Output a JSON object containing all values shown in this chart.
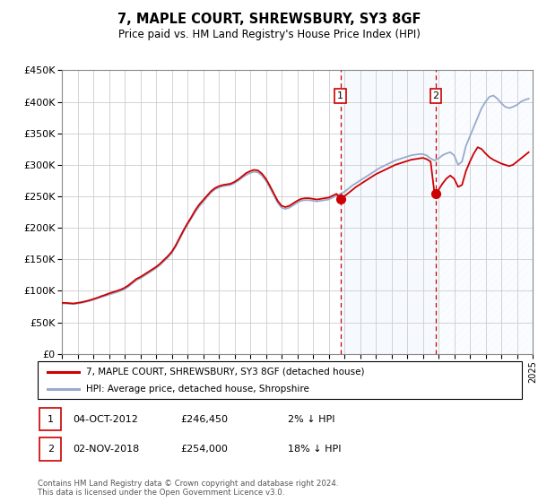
{
  "title": "7, MAPLE COURT, SHREWSBURY, SY3 8GF",
  "subtitle": "Price paid vs. HM Land Registry's House Price Index (HPI)",
  "ylim": [
    0,
    450000
  ],
  "yticks": [
    0,
    50000,
    100000,
    150000,
    200000,
    250000,
    300000,
    350000,
    400000,
    450000
  ],
  "ytick_labels": [
    "£0",
    "£50K",
    "£100K",
    "£150K",
    "£200K",
    "£250K",
    "£300K",
    "£350K",
    "£400K",
    "£450K"
  ],
  "xlim_start": 1995.0,
  "xlim_end": 2025.0,
  "sale1_date": 2012.75,
  "sale1_label": "1",
  "sale1_price": 246450,
  "sale2_date": 2018.83,
  "sale2_label": "2",
  "sale2_price": 254000,
  "line_color_property": "#cc0000",
  "line_color_hpi": "#99aacc",
  "shade_color": "#ddeeff",
  "legend_property": "7, MAPLE COURT, SHREWSBURY, SY3 8GF (detached house)",
  "legend_hpi": "HPI: Average price, detached house, Shropshire",
  "footer": "Contains HM Land Registry data © Crown copyright and database right 2024.\nThis data is licensed under the Open Government Licence v3.0.",
  "hpi_data": {
    "years": [
      1995.0,
      1995.25,
      1995.5,
      1995.75,
      1996.0,
      1996.25,
      1996.5,
      1996.75,
      1997.0,
      1997.25,
      1997.5,
      1997.75,
      1998.0,
      1998.25,
      1998.5,
      1998.75,
      1999.0,
      1999.25,
      1999.5,
      1999.75,
      2000.0,
      2000.25,
      2000.5,
      2000.75,
      2001.0,
      2001.25,
      2001.5,
      2001.75,
      2002.0,
      2002.25,
      2002.5,
      2002.75,
      2003.0,
      2003.25,
      2003.5,
      2003.75,
      2004.0,
      2004.25,
      2004.5,
      2004.75,
      2005.0,
      2005.25,
      2005.5,
      2005.75,
      2006.0,
      2006.25,
      2006.5,
      2006.75,
      2007.0,
      2007.25,
      2007.5,
      2007.75,
      2008.0,
      2008.25,
      2008.5,
      2008.75,
      2009.0,
      2009.25,
      2009.5,
      2009.75,
      2010.0,
      2010.25,
      2010.5,
      2010.75,
      2011.0,
      2011.25,
      2011.5,
      2011.75,
      2012.0,
      2012.25,
      2012.5,
      2012.75,
      2013.0,
      2013.25,
      2013.5,
      2013.75,
      2014.0,
      2014.25,
      2014.5,
      2014.75,
      2015.0,
      2015.25,
      2015.5,
      2015.75,
      2016.0,
      2016.25,
      2016.5,
      2016.75,
      2017.0,
      2017.25,
      2017.5,
      2017.75,
      2018.0,
      2018.25,
      2018.5,
      2018.75,
      2019.0,
      2019.25,
      2019.5,
      2019.75,
      2020.0,
      2020.25,
      2020.5,
      2020.75,
      2021.0,
      2021.25,
      2021.5,
      2021.75,
      2022.0,
      2022.25,
      2022.5,
      2022.75,
      2023.0,
      2023.25,
      2023.5,
      2023.75,
      2024.0,
      2024.25,
      2024.5,
      2024.75
    ],
    "values": [
      80000,
      80000,
      79500,
      79000,
      80000,
      81000,
      82500,
      84000,
      86000,
      88000,
      90000,
      92000,
      94000,
      96000,
      98000,
      100000,
      103000,
      107000,
      112000,
      117000,
      120000,
      124000,
      128000,
      132000,
      136000,
      141000,
      147000,
      153000,
      160000,
      170000,
      182000,
      194000,
      205000,
      215000,
      225000,
      234000,
      241000,
      249000,
      256000,
      261000,
      264000,
      266000,
      267000,
      268000,
      271000,
      275000,
      280000,
      284000,
      287000,
      289000,
      288000,
      283000,
      275000,
      264000,
      252000,
      240000,
      232000,
      230000,
      232000,
      236000,
      240000,
      243000,
      244000,
      244000,
      243000,
      242000,
      243000,
      244000,
      245000,
      248000,
      251000,
      254000,
      257000,
      262000,
      267000,
      271000,
      275000,
      279000,
      283000,
      287000,
      291000,
      295000,
      298000,
      301000,
      304000,
      307000,
      309000,
      311000,
      313000,
      315000,
      316000,
      317000,
      317000,
      315000,
      310000,
      307000,
      310000,
      315000,
      318000,
      320000,
      315000,
      300000,
      305000,
      330000,
      345000,
      360000,
      375000,
      390000,
      400000,
      408000,
      410000,
      405000,
      398000,
      392000,
      390000,
      392000,
      395000,
      400000,
      403000,
      405000
    ]
  },
  "property_data": {
    "years": [
      1995.0,
      1995.25,
      1995.5,
      1995.75,
      1996.0,
      1996.25,
      1996.5,
      1996.75,
      1997.0,
      1997.25,
      1997.5,
      1997.75,
      1998.0,
      1998.25,
      1998.5,
      1998.75,
      1999.0,
      1999.25,
      1999.5,
      1999.75,
      2000.0,
      2000.25,
      2000.5,
      2000.75,
      2001.0,
      2001.25,
      2001.5,
      2001.75,
      2002.0,
      2002.25,
      2002.5,
      2002.75,
      2003.0,
      2003.25,
      2003.5,
      2003.75,
      2004.0,
      2004.25,
      2004.5,
      2004.75,
      2005.0,
      2005.25,
      2005.5,
      2005.75,
      2006.0,
      2006.25,
      2006.5,
      2006.75,
      2007.0,
      2007.25,
      2007.5,
      2007.75,
      2008.0,
      2008.25,
      2008.5,
      2008.75,
      2009.0,
      2009.25,
      2009.5,
      2009.75,
      2010.0,
      2010.25,
      2010.5,
      2010.75,
      2011.0,
      2011.25,
      2011.5,
      2011.75,
      2012.0,
      2012.25,
      2012.5,
      2012.75,
      2013.0,
      2013.25,
      2013.5,
      2013.75,
      2014.0,
      2014.25,
      2014.5,
      2014.75,
      2015.0,
      2015.25,
      2015.5,
      2015.75,
      2016.0,
      2016.25,
      2016.5,
      2016.75,
      2017.0,
      2017.25,
      2017.5,
      2017.75,
      2018.0,
      2018.25,
      2018.5,
      2018.75,
      2019.0,
      2019.25,
      2019.5,
      2019.75,
      2020.0,
      2020.25,
      2020.5,
      2020.75,
      2021.0,
      2021.25,
      2021.5,
      2021.75,
      2022.0,
      2022.25,
      2022.5,
      2022.75,
      2023.0,
      2023.25,
      2023.5,
      2023.75,
      2024.0,
      2024.25,
      2024.5,
      2024.75
    ],
    "values": [
      81000,
      81000,
      80500,
      80000,
      81000,
      82000,
      83500,
      85000,
      87000,
      89000,
      91500,
      93500,
      96000,
      98000,
      100000,
      102000,
      105000,
      109000,
      114000,
      119000,
      122000,
      126000,
      130000,
      134000,
      138000,
      143000,
      149000,
      155000,
      162000,
      172000,
      184000,
      196000,
      207000,
      217000,
      228000,
      237000,
      244000,
      251000,
      258000,
      263000,
      266000,
      268000,
      269000,
      270000,
      273000,
      277000,
      282000,
      287000,
      290000,
      292000,
      291000,
      286000,
      278000,
      267000,
      255000,
      243000,
      235000,
      233000,
      235000,
      239000,
      243000,
      246000,
      247000,
      247000,
      246000,
      245000,
      246000,
      247000,
      248000,
      251000,
      254000,
      246450,
      250000,
      255000,
      260000,
      265000,
      269000,
      273000,
      277000,
      281000,
      285000,
      288000,
      291000,
      294000,
      297000,
      300000,
      302000,
      304000,
      306000,
      308000,
      309000,
      310000,
      311000,
      309000,
      305000,
      254000,
      260000,
      270000,
      278000,
      283000,
      278000,
      265000,
      268000,
      290000,
      305000,
      318000,
      328000,
      325000,
      318000,
      312000,
      308000,
      305000,
      302000,
      300000,
      298000,
      300000,
      305000,
      310000,
      315000,
      320000
    ]
  }
}
